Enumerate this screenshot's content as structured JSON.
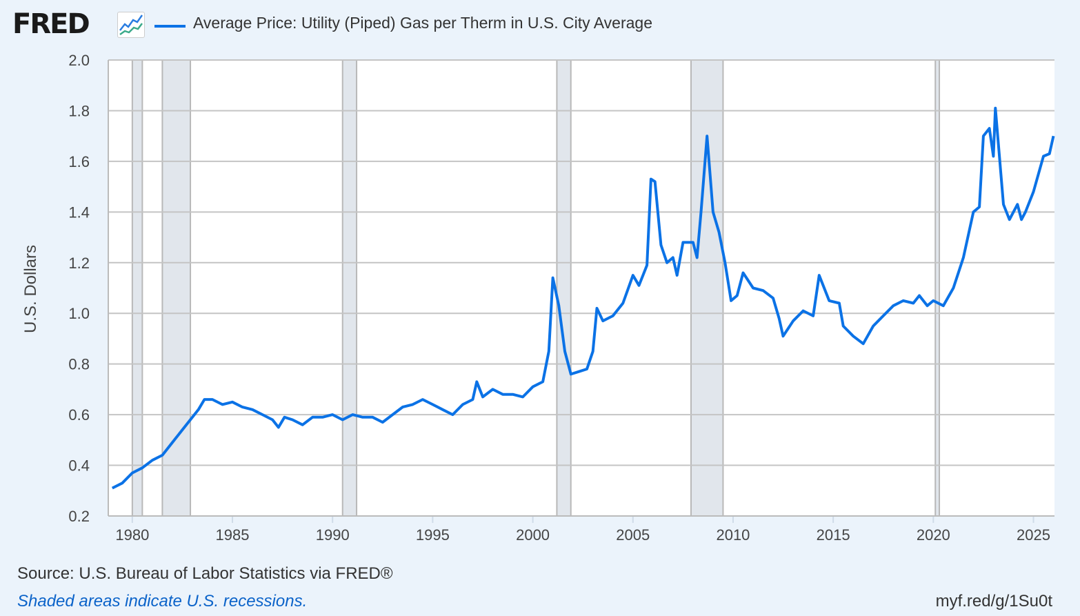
{
  "header": {
    "logo": "FRED",
    "logo_icon": "line-chart-icon",
    "series_title": "Average Price: Utility (Piped) Gas per Therm in U.S. City Average"
  },
  "footer": {
    "source": "Source: U.S. Bureau of Labor Statistics via FRED®",
    "note": "Shaded areas indicate U.S. recessions.",
    "url": "myf.red/g/1Su0t"
  },
  "colors": {
    "line": "#0b72e6",
    "recession": "#e1e6ec",
    "background": "#ebf3fb",
    "grid": "#c4c4c4"
  },
  "chart_data": {
    "type": "line",
    "title": "Average Price: Utility (Piped) Gas per Therm in U.S. City Average",
    "ylabel": "U.S. Dollars",
    "xlabel": "",
    "xlim": [
      1978.8,
      2026.05
    ],
    "ylim": [
      0.2,
      2.0
    ],
    "yticks": [
      "0.2",
      "0.4",
      "0.6",
      "0.8",
      "1.0",
      "1.2",
      "1.4",
      "1.6",
      "1.8",
      "2.0"
    ],
    "xticks": [
      "1980",
      "1985",
      "1990",
      "1995",
      "2000",
      "2005",
      "2010",
      "2015",
      "2020",
      "2025"
    ],
    "grid": true,
    "recessions": [
      [
        1980.0,
        1980.5
      ],
      [
        1981.5,
        1982.9
      ],
      [
        1990.5,
        1991.2
      ],
      [
        2001.2,
        2001.9
      ],
      [
        2007.9,
        2009.5
      ],
      [
        2020.1,
        2020.3
      ]
    ],
    "series": [
      {
        "name": "Average Price: Utility (Piped) Gas per Therm in U.S. City Average",
        "x": [
          1979.0,
          1979.5,
          1980.0,
          1980.5,
          1981.0,
          1981.5,
          1982.0,
          1982.5,
          1983.0,
          1983.3,
          1983.6,
          1984.0,
          1984.5,
          1985.0,
          1985.5,
          1986.0,
          1986.5,
          1987.0,
          1987.3,
          1987.6,
          1988.0,
          1988.5,
          1989.0,
          1989.5,
          1990.0,
          1990.5,
          1991.0,
          1991.5,
          1992.0,
          1992.5,
          1993.0,
          1993.5,
          1994.0,
          1994.5,
          1995.0,
          1995.5,
          1996.0,
          1996.5,
          1997.0,
          1997.2,
          1997.5,
          1998.0,
          1998.5,
          1999.0,
          1999.5,
          2000.0,
          2000.5,
          2000.8,
          2001.0,
          2001.3,
          2001.6,
          2001.9,
          2002.3,
          2002.7,
          2003.0,
          2003.2,
          2003.5,
          2004.0,
          2004.5,
          2005.0,
          2005.3,
          2005.7,
          2005.9,
          2006.1,
          2006.4,
          2006.7,
          2007.0,
          2007.2,
          2007.5,
          2008.0,
          2008.2,
          2008.4,
          2008.7,
          2009.0,
          2009.3,
          2009.6,
          2009.9,
          2010.2,
          2010.5,
          2011.0,
          2011.5,
          2012.0,
          2012.3,
          2012.5,
          2013.0,
          2013.5,
          2014.0,
          2014.3,
          2014.8,
          2015.3,
          2015.5,
          2016.0,
          2016.5,
          2017.0,
          2017.5,
          2018.0,
          2018.5,
          2019.0,
          2019.3,
          2019.7,
          2020.0,
          2020.5,
          2021.0,
          2021.5,
          2022.0,
          2022.3,
          2022.5,
          2022.8,
          2023.0,
          2023.1,
          2023.5,
          2023.8,
          2024.2,
          2024.4,
          2024.6,
          2025.0,
          2025.5,
          2025.8,
          2026.0
        ],
        "values": [
          0.31,
          0.33,
          0.37,
          0.39,
          0.42,
          0.44,
          0.49,
          0.54,
          0.59,
          0.62,
          0.66,
          0.66,
          0.64,
          0.65,
          0.63,
          0.62,
          0.6,
          0.58,
          0.55,
          0.59,
          0.58,
          0.56,
          0.59,
          0.59,
          0.6,
          0.58,
          0.6,
          0.59,
          0.59,
          0.57,
          0.6,
          0.63,
          0.64,
          0.66,
          0.64,
          0.62,
          0.6,
          0.64,
          0.66,
          0.73,
          0.67,
          0.7,
          0.68,
          0.68,
          0.67,
          0.71,
          0.73,
          0.85,
          1.14,
          1.03,
          0.85,
          0.76,
          0.77,
          0.78,
          0.85,
          1.02,
          0.97,
          0.99,
          1.04,
          1.15,
          1.11,
          1.19,
          1.53,
          1.52,
          1.27,
          1.2,
          1.22,
          1.15,
          1.28,
          1.28,
          1.22,
          1.4,
          1.7,
          1.4,
          1.32,
          1.2,
          1.05,
          1.07,
          1.16,
          1.1,
          1.09,
          1.06,
          0.98,
          0.91,
          0.97,
          1.01,
          0.99,
          1.15,
          1.05,
          1.04,
          0.95,
          0.91,
          0.88,
          0.95,
          0.99,
          1.03,
          1.05,
          1.04,
          1.07,
          1.03,
          1.05,
          1.03,
          1.1,
          1.22,
          1.4,
          1.42,
          1.7,
          1.73,
          1.62,
          1.81,
          1.43,
          1.37,
          1.43,
          1.37,
          1.4,
          1.48,
          1.62,
          1.63,
          1.7
        ]
      }
    ]
  }
}
